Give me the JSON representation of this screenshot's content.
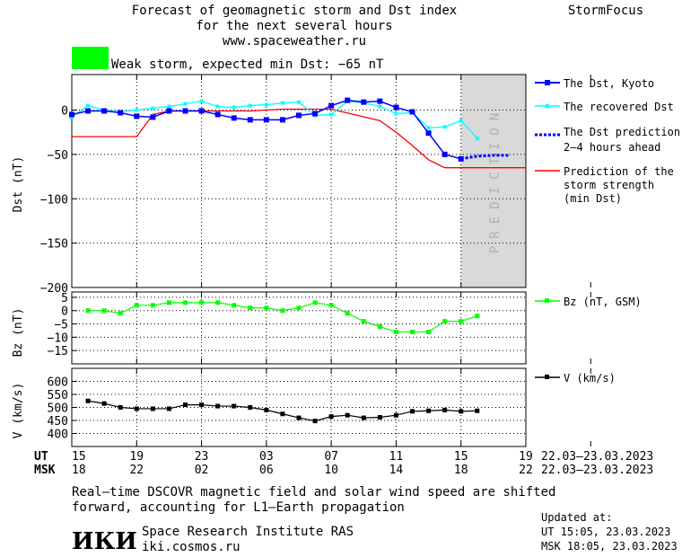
{
  "header": {
    "title_line1": "Forecast of geomagnetic storm and Dst index",
    "title_line2": "for the next several hours",
    "url": "www.spaceweather.ru",
    "brand": "StormFocus",
    "storm_label": "Weak storm, expected min Dst: −65 nT",
    "storm_color": "#00ff00"
  },
  "prediction_text": "PREDICTION",
  "colors": {
    "dst_kyoto": "#0000ff",
    "dst_recovered": "#00ffff",
    "dst_prediction": "#0000ff",
    "min_dst": "#ff0000",
    "bz": "#00ff00",
    "v": "#000000",
    "prediction_band": "#d9d9d9"
  },
  "legend": {
    "dst_kyoto": "The Dst, Kyoto",
    "dst_recovered": "The recovered Dst",
    "dst_prediction_1": "The Dst prediction",
    "dst_prediction_2": "2–4 hours ahead",
    "min_dst_1": "Prediction of the",
    "min_dst_2": "storm strength",
    "min_dst_3": "(min Dst)",
    "bz": "Bz (nT, GSM)",
    "v": "V (km/s)"
  },
  "time_axis": {
    "ut_label": "UT",
    "msk_label": "MSK",
    "ut_ticks": [
      "15",
      "19",
      "23",
      "03",
      "07",
      "11",
      "15",
      "19"
    ],
    "msk_ticks": [
      "18",
      "22",
      "02",
      "06",
      "10",
      "14",
      "18",
      "22"
    ],
    "ut_range": "22.03–23.03.2023",
    "msk_range": "22.03–23.03.2023"
  },
  "footer": {
    "note_line1": "Real–time DSCOVR magnetic field and solar wind speed are shifted",
    "note_line2": "forward, accounting for L1–Earth propagation",
    "logo": "ИКИ",
    "institute": "Space Research Institute RAS",
    "site": "iki.cosmos.ru",
    "updated_label": "Updated at:",
    "updated_ut": "UT   15:05, 23.03.2023",
    "updated_msk": "MSK 18:05, 23.03.2023"
  },
  "chart_data": [
    {
      "type": "line",
      "panel": "dst",
      "ylabel": "Dst (nT)",
      "ylim": [
        -200,
        40
      ],
      "yticks": [
        0,
        -50,
        -100,
        -150,
        -200
      ],
      "xlim": [
        0,
        28
      ],
      "prediction_band": [
        24,
        28
      ],
      "series": [
        {
          "name": "The Dst, Kyoto",
          "x": [
            0,
            1,
            2,
            3,
            4,
            5,
            6,
            7,
            8,
            9,
            10,
            11,
            12,
            13,
            14,
            15,
            16,
            17,
            18,
            19,
            20,
            21,
            22,
            23,
            24
          ],
          "values": [
            -5,
            -1,
            -1,
            -3,
            -7,
            -8,
            -1,
            -1,
            -1,
            -5,
            -9,
            -11,
            -11,
            -11,
            -6,
            -4,
            5,
            11,
            9,
            10,
            3,
            -2,
            -26,
            -50,
            -55
          ]
        },
        {
          "name": "The recovered Dst",
          "x": [
            0,
            1,
            2,
            3,
            4,
            5,
            6,
            7,
            8,
            9,
            10,
            11,
            12,
            13,
            14,
            15,
            16,
            17,
            18,
            19,
            20,
            21,
            22,
            23,
            24,
            25
          ],
          "values": [
            -8,
            5,
            0,
            -2,
            0,
            2,
            4,
            7,
            10,
            4,
            3,
            5,
            6,
            8,
            9,
            -6,
            -5,
            10,
            8,
            4,
            -4,
            -3,
            -20,
            -19,
            -12,
            -32
          ]
        },
        {
          "name": "The Dst prediction",
          "x": [
            24,
            25,
            26,
            27
          ],
          "values": [
            -55,
            -52,
            -51,
            -51
          ]
        },
        {
          "name": "Prediction of the storm strength (min Dst)",
          "x": [
            0,
            4,
            5,
            6,
            11,
            13,
            16,
            19,
            20,
            21,
            22,
            23,
            24,
            28
          ],
          "values": [
            -30,
            -30,
            -5,
            -1,
            -1,
            1,
            1,
            -12,
            -25,
            -40,
            -56,
            -65,
            -65,
            -65
          ]
        }
      ]
    },
    {
      "type": "line",
      "panel": "bz",
      "ylabel": "Bz (nT)",
      "ylim": [
        -20,
        7
      ],
      "yticks": [
        5,
        0,
        -5,
        -10,
        -15
      ],
      "series": [
        {
          "name": "Bz (nT, GSM)",
          "x": [
            1,
            2,
            3,
            4,
            5,
            6,
            7,
            8,
            9,
            10,
            11,
            12,
            13,
            14,
            15,
            16,
            17,
            18,
            19,
            20,
            21,
            22,
            23,
            24,
            25
          ],
          "values": [
            0,
            0,
            -1,
            2,
            2,
            3,
            3,
            3,
            3,
            2,
            1,
            1,
            0,
            1,
            3,
            2,
            -1,
            -4,
            -6,
            -8,
            -8,
            -8,
            -4,
            -4,
            -2
          ]
        }
      ]
    },
    {
      "type": "line",
      "panel": "v",
      "ylabel": "V (km/s)",
      "ylim": [
        350,
        650
      ],
      "yticks": [
        600,
        550,
        500,
        450,
        400
      ],
      "series": [
        {
          "name": "V (km/s)",
          "x": [
            1,
            2,
            3,
            4,
            5,
            6,
            7,
            8,
            9,
            10,
            11,
            12,
            13,
            14,
            15,
            16,
            17,
            18,
            19,
            20,
            21,
            22,
            23,
            24,
            25
          ],
          "values": [
            525,
            515,
            500,
            495,
            495,
            495,
            510,
            510,
            505,
            505,
            500,
            490,
            475,
            460,
            448,
            465,
            470,
            460,
            462,
            470,
            485,
            487,
            490,
            485,
            487
          ]
        }
      ]
    }
  ]
}
